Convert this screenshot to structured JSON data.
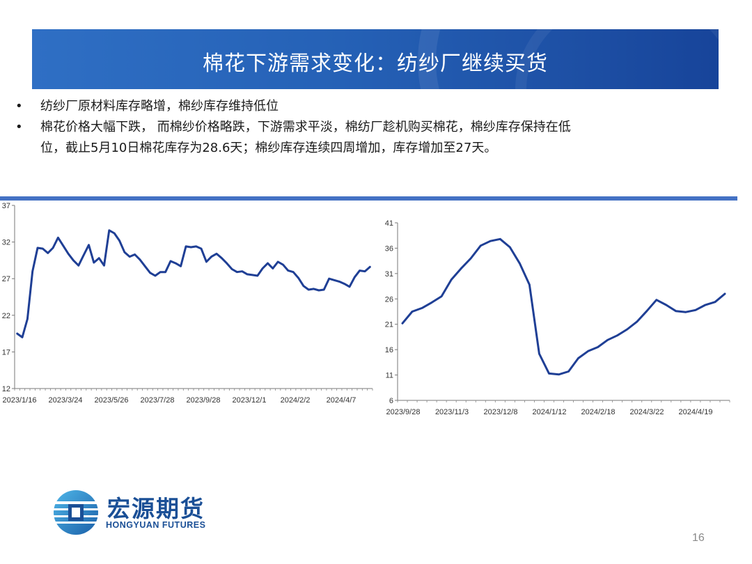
{
  "slide": {
    "title": "棉花下游需求变化：纺纱厂继续买货",
    "bullets": [
      {
        "marker": "•",
        "text": "纺纱厂原材料库存略增，棉纱库存维持低位"
      },
      {
        "marker": "•",
        "text": "棉花价格大幅下跌， 而棉纱价格略跌，下游需求平淡，棉纺厂趁机购买棉花，棉纱库存保持在低"
      },
      {
        "marker": "",
        "text": "位，截止5月10日棉花库存为28.6天；棉纱库存连续四周增加，库存增加至27天。"
      }
    ],
    "page_number": "16",
    "accent_color": "#2a64b8",
    "line_color": "#1f3f95"
  },
  "logo": {
    "name_cn": "宏源期货",
    "name_en": "HONGYUAN FUTURES",
    "icon": "hongyuan-logo-icon"
  },
  "chart_data": [
    {
      "type": "line",
      "title": "",
      "xlabel": "",
      "ylabel": "",
      "ylim": [
        12,
        37
      ],
      "yticks": [
        12,
        17,
        22,
        27,
        32,
        37
      ],
      "xtick_labels": [
        "2023/1/16",
        "2023/3/24",
        "2023/5/26",
        "2023/7/28",
        "2023/9/28",
        "2023/12/1",
        "2024/2/2",
        "2024/4/7"
      ],
      "grid": false,
      "legend": "none",
      "series": [
        {
          "values": [
            19.5,
            19.0,
            21.5,
            28.0,
            31.2,
            31.1,
            30.5,
            31.2,
            32.6,
            31.5,
            30.4,
            29.5,
            28.8,
            30.2,
            31.6,
            29.2,
            29.8,
            28.8,
            33.6,
            33.2,
            32.2,
            30.6,
            30.0,
            30.3,
            29.6,
            28.7,
            27.8,
            27.4,
            27.9,
            27.9,
            29.4,
            29.1,
            28.7,
            31.4,
            31.3,
            31.4,
            31.1,
            29.3,
            30.0,
            30.4,
            29.8,
            29.1,
            28.3,
            27.9,
            28.0,
            27.6,
            27.5,
            27.4,
            28.4,
            29.1,
            28.4,
            29.3,
            28.9,
            28.1,
            27.9,
            27.1,
            26.0,
            25.5,
            25.6,
            25.4,
            25.5,
            27.0,
            26.8,
            26.6,
            26.3,
            25.9,
            27.2,
            28.1,
            28.0,
            28.6
          ]
        }
      ]
    },
    {
      "type": "line",
      "title": "",
      "xlabel": "",
      "ylabel": "",
      "ylim": [
        6,
        41
      ],
      "yticks": [
        6,
        11,
        16,
        21,
        26,
        31,
        36,
        41
      ],
      "xtick_labels": [
        "2023/9/28",
        "2023/11/3",
        "2023/12/8",
        "2024/1/12",
        "2024/2/18",
        "2024/3/22",
        "2024/4/19"
      ],
      "grid": false,
      "legend": "none",
      "series": [
        {
          "values": [
            21.2,
            23.5,
            24.2,
            25.3,
            26.5,
            29.8,
            32.0,
            34.0,
            36.5,
            37.4,
            37.8,
            36.2,
            33.0,
            28.8,
            15.2,
            11.3,
            11.1,
            11.7,
            14.3,
            15.7,
            16.5,
            17.9,
            18.8,
            20.0,
            21.5,
            23.6,
            25.8,
            24.8,
            23.6,
            23.4,
            23.8,
            24.8,
            25.4,
            27.0
          ]
        }
      ]
    }
  ]
}
